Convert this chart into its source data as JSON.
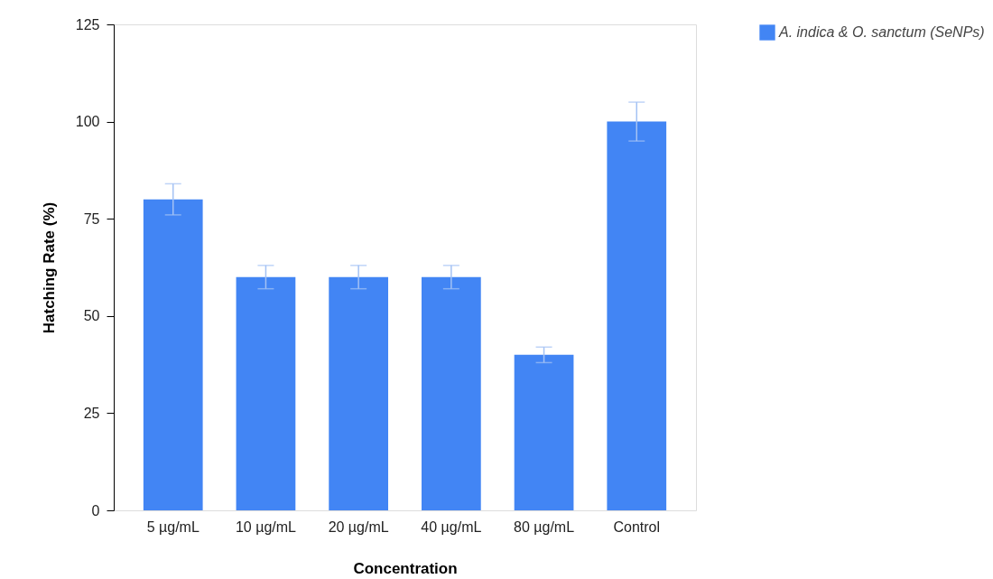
{
  "chart_data": {
    "type": "bar",
    "xlabel": "Concentration",
    "ylabel": "Hatching Rate (%)",
    "categories": [
      "5 µg/mL",
      "10 µg/mL",
      "20 µg/mL",
      "40 µg/mL",
      "80 µg/mL",
      "Control"
    ],
    "series": [
      {
        "name": "A. indica & O. sanctum (SeNPs)",
        "color": "#4285f4",
        "values": [
          80,
          60,
          60,
          60,
          40,
          100
        ],
        "errors": [
          4,
          3,
          3,
          3,
          2,
          5
        ]
      }
    ],
    "ylim": [
      0,
      125
    ],
    "yticks": [
      0,
      25,
      50,
      75,
      100,
      125
    ],
    "grid": false,
    "legend": "top right"
  }
}
